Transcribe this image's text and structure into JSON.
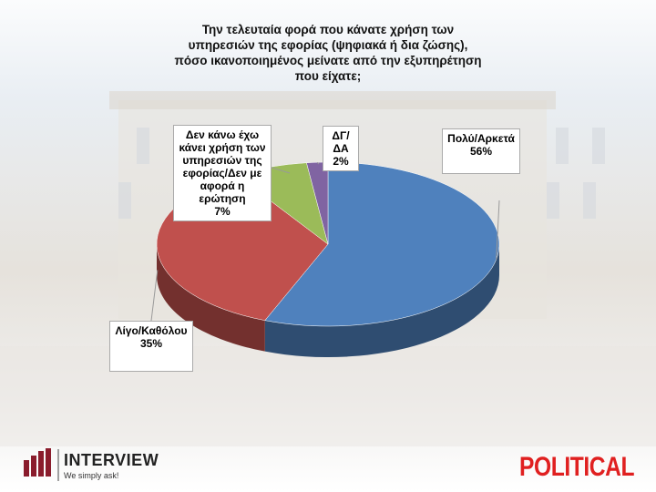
{
  "chart_data": {
    "type": "pie3d",
    "title": "Την τελευταία φορά που κάνατε χρήση των υπηρεσιών της εφορίας (ψηφιακά ή δια ζώσης), πόσο ικανοποιημένος μείνατε από την εξυπηρέτηση που είχατε;",
    "categories": [
      "Πολύ/Αρκετά",
      "Λίγο/Καθόλου",
      "Δεν κάνω έχω κάνει χρήση των υπηρεσιών της εφορίας/Δεν με αφορά η ερώτηση",
      "ΔΓ/ΔΑ"
    ],
    "values": [
      56,
      35,
      7,
      2
    ],
    "value_labels": [
      "56%",
      "35%",
      "7%",
      "2%"
    ],
    "colors": [
      "#4f81bd",
      "#c0504d",
      "#9bbb59",
      "#8064a2"
    ]
  },
  "logos": {
    "left": "INTERVIEW",
    "left_tagline": "We simply ask!",
    "right": "POLITICAL"
  }
}
